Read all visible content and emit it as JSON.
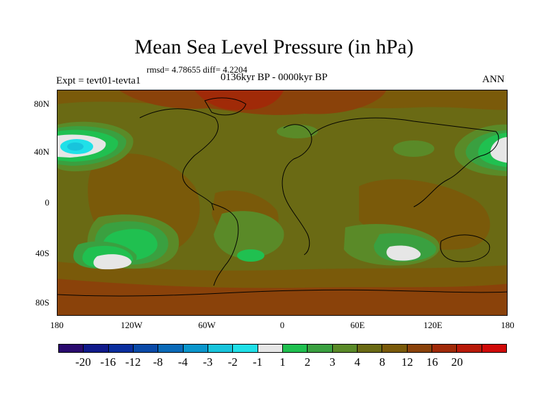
{
  "title": "Mean Sea Level Pressure (in hPa)",
  "stats": "rmsd= 4.78655 diff= 4.2204",
  "experiment": "Expt = tevt01-tevta1",
  "period": "0136kyr BP - 0000kyr BP",
  "season": "ANN",
  "lat_labels": [
    "80N",
    "40N",
    "0",
    "40S",
    "80S"
  ],
  "lon_labels": [
    "180",
    "120W",
    "60W",
    "0",
    "60E",
    "120E",
    "180"
  ],
  "colorbar": {
    "labels": [
      "-20",
      "-16",
      "-12",
      "-8",
      "-4",
      "-3",
      "-2",
      "-1",
      "1",
      "2",
      "3",
      "4",
      "8",
      "12",
      "16",
      "20"
    ],
    "colors": [
      "#2a0a6e",
      "#101a8a",
      "#0a2e9e",
      "#0a4aa8",
      "#0a6ab8",
      "#0a96cc",
      "#18c4dc",
      "#20e0e8",
      "#e6e6e6",
      "#20c050",
      "#3aa040",
      "#5a8a28",
      "#6a6a14",
      "#7a5a0a",
      "#8a420a",
      "#a02a08",
      "#b81a08",
      "#d00a08"
    ]
  },
  "map_colors": {
    "background": "#6a6a14",
    "warm": "#7a5a0a",
    "warmer": "#8a420a",
    "hot": "#a02a08",
    "mid": "#5a8a28",
    "green": "#3aa040",
    "bright_green": "#20c050",
    "white": "#e6e6e6",
    "cyan": "#20e0e8",
    "teal": "#18c4dc",
    "coast": "#000000"
  }
}
